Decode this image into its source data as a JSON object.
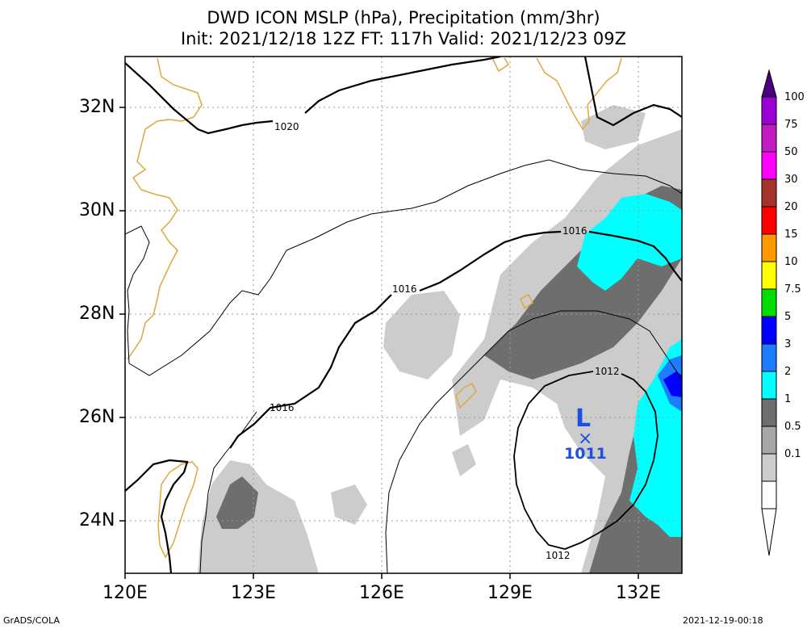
{
  "title": {
    "line1": "DWD ICON MSLP (hPa), Precipitation (mm/3hr)",
    "line2": "Init: 2021/12/18 12Z  FT: 117h  Valid: 2021/12/23 09Z"
  },
  "axes": {
    "lat_labels": [
      "32N",
      "30N",
      "28N",
      "26N",
      "24N"
    ],
    "lon_labels": [
      "120E",
      "123E",
      "126E",
      "129E",
      "132E"
    ]
  },
  "isobars": {
    "label_1020": "1020",
    "label_1016_a": "1016",
    "label_1016_b": "1016",
    "label_1016_c": "1016",
    "label_1012_a": "1012",
    "label_1012_b": "1012"
  },
  "low_center": {
    "symbol": "L",
    "marker": "×",
    "pressure": "1011",
    "color": "#1f4fe0"
  },
  "colorbar": {
    "labels": [
      "100",
      "75",
      "50",
      "30",
      "20",
      "15",
      "10",
      "7.5",
      "5",
      "3",
      "2",
      "1",
      "0.5",
      "0.1"
    ],
    "colors": [
      "#9b00d6",
      "#c21bc2",
      "#ff00ff",
      "#a6332a",
      "#ff0000",
      "#ff9900",
      "#ffff00",
      "#00dd00",
      "#0000ff",
      "#1e7dff",
      "#00ffff",
      "#6e6e6e",
      "#a6a6a6",
      "#cccccc"
    ]
  },
  "footer": {
    "left": "GrADS/COLA",
    "right": "2021-12-19-00:18"
  }
}
